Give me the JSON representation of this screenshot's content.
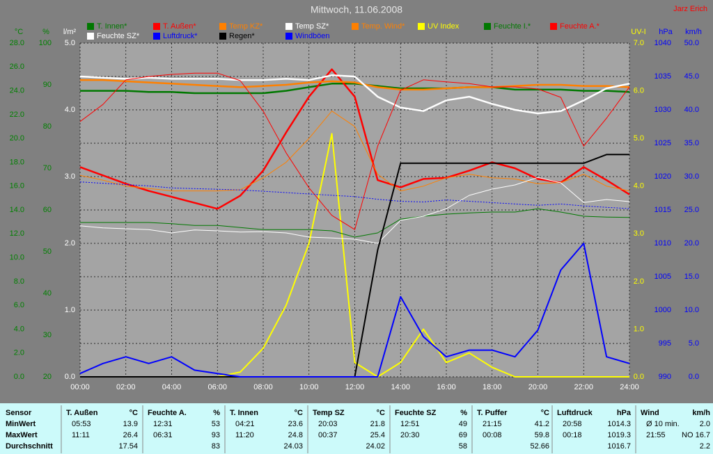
{
  "chart_data": {
    "type": "line",
    "title": "Mittwoch, 11.06.2008",
    "credit": "Jarz Erich",
    "xlim": [
      0,
      24
    ],
    "xticks": [
      {
        "value": 0,
        "label": "00:00"
      },
      {
        "value": 2,
        "label": "02:00"
      },
      {
        "value": 4,
        "label": "04:00"
      },
      {
        "value": 6,
        "label": "06:00"
      },
      {
        "value": 8,
        "label": "08:00"
      },
      {
        "value": 10,
        "label": "10:00"
      },
      {
        "value": 12,
        "label": "12:00"
      },
      {
        "value": 14,
        "label": "14:00"
      },
      {
        "value": 16,
        "label": "16:00"
      },
      {
        "value": 18,
        "label": "18:00"
      },
      {
        "value": 20,
        "label": "20:00"
      },
      {
        "value": 22,
        "label": "22:00"
      },
      {
        "value": 24,
        "label": "24:00"
      }
    ],
    "x": [
      0,
      1,
      2,
      3,
      4,
      5,
      6,
      7,
      8,
      9,
      10,
      11,
      12,
      13,
      14,
      15,
      16,
      17,
      18,
      19,
      20,
      21,
      22,
      23,
      24
    ],
    "axes": [
      {
        "label": "°C",
        "color": "#008000",
        "lim": [
          0,
          28
        ],
        "ticks": [
          {
            "value": 0,
            "label": "0.0"
          },
          {
            "value": 2,
            "label": "2.0"
          },
          {
            "value": 4,
            "label": "4.0"
          },
          {
            "value": 6,
            "label": "6.0"
          },
          {
            "value": 8,
            "label": "8.0"
          },
          {
            "value": 10,
            "label": "10.0"
          },
          {
            "value": 12,
            "label": "12.0"
          },
          {
            "value": 14,
            "label": "14.0"
          },
          {
            "value": 16,
            "label": "16.0"
          },
          {
            "value": 18,
            "label": "18.0"
          },
          {
            "value": 20,
            "label": "20.0"
          },
          {
            "value": 22,
            "label": "22.0"
          },
          {
            "value": 24,
            "label": "24.0"
          },
          {
            "value": 26,
            "label": "26.0"
          },
          {
            "value": 28,
            "label": "28.0"
          }
        ]
      },
      {
        "label": "%",
        "color": "#008000",
        "lim": [
          20,
          100
        ],
        "ticks": [
          20,
          30,
          40,
          50,
          60,
          70,
          80,
          90,
          100
        ]
      },
      {
        "label": "l/m²",
        "color": "#ffffff",
        "lim": [
          0,
          5
        ],
        "ticks": [
          {
            "value": 0,
            "label": "0.0"
          },
          {
            "value": 1,
            "label": "1.0"
          },
          {
            "value": 2,
            "label": "2.0"
          },
          {
            "value": 3,
            "label": "3.0"
          },
          {
            "value": 4,
            "label": "4.0"
          },
          {
            "value": 5,
            "label": "5.0"
          }
        ]
      },
      {
        "label": "UV-I",
        "color": "#ffff00",
        "lim": [
          0,
          7
        ],
        "ticks": [
          {
            "value": 0,
            "label": "0.0"
          },
          {
            "value": 1,
            "label": "1.0"
          },
          {
            "value": 2,
            "label": "2.0"
          },
          {
            "value": 3,
            "label": "3.0"
          },
          {
            "value": 4,
            "label": "4.0"
          },
          {
            "value": 5,
            "label": "5.0"
          },
          {
            "value": 6,
            "label": "6.0"
          },
          {
            "value": 7,
            "label": "7.0"
          }
        ]
      },
      {
        "label": "hPa",
        "color": "#0000ff",
        "lim": [
          990,
          1040
        ],
        "grid": true,
        "ticks": [
          990,
          995,
          1000,
          1005,
          1010,
          1015,
          1020,
          1025,
          1030,
          1035,
          1040
        ]
      },
      {
        "label": "km/h",
        "color": "#0000ff",
        "lim": [
          0,
          50
        ],
        "ticks": [
          {
            "value": 0,
            "label": "0.0"
          },
          {
            "value": 5,
            "label": "5.0"
          },
          {
            "value": 10,
            "label": "10.0"
          },
          {
            "value": 15,
            "label": "15.0"
          },
          {
            "value": 20,
            "label": "20.0"
          },
          {
            "value": 25,
            "label": "25.0"
          },
          {
            "value": 30,
            "label": "30.0"
          },
          {
            "value": 35,
            "label": "35.0"
          },
          {
            "value": 40,
            "label": "40.0"
          },
          {
            "value": 45,
            "label": "45.0"
          },
          {
            "value": 50,
            "label": "50.0"
          }
        ]
      }
    ],
    "series": [
      {
        "name": "T. Innen*",
        "color": "#007800",
        "axis": 0,
        "line_width": 2.5,
        "values": [
          24.0,
          24.0,
          24.0,
          23.9,
          23.9,
          23.8,
          23.8,
          23.8,
          23.8,
          24.0,
          24.3,
          24.6,
          24.6,
          24.4,
          24.2,
          24.2,
          24.2,
          24.3,
          24.3,
          24.1,
          24.1,
          24.1,
          24.0,
          24.0,
          23.9
        ]
      },
      {
        "name": "T. Außen*",
        "color": "#ff0000",
        "axis": 0,
        "line_width": 2.5,
        "values": [
          17.6,
          16.9,
          16.2,
          15.6,
          15.1,
          14.6,
          14.1,
          15.2,
          17.3,
          20.5,
          23.5,
          25.8,
          23.5,
          16.5,
          15.9,
          16.6,
          16.7,
          17.3,
          18.0,
          17.5,
          16.6,
          16.3,
          17.6,
          16.5,
          15.3
        ]
      },
      {
        "name": "Temp KZ*",
        "color": "#ff8000",
        "axis": 0,
        "line_width": 2.5,
        "values": [
          24.9,
          24.9,
          24.8,
          24.7,
          24.6,
          24.5,
          24.4,
          24.3,
          24.4,
          24.5,
          24.7,
          24.8,
          24.7,
          24.3,
          24.1,
          24.1,
          24.2,
          24.3,
          24.3,
          24.4,
          24.5,
          24.5,
          24.4,
          24.4,
          24.3
        ]
      },
      {
        "name": "Temp SZ*",
        "color": "#ffffff",
        "axis": 0,
        "line_width": 2.5,
        "values": [
          25.2,
          25.1,
          25.0,
          25.1,
          25.0,
          25.0,
          25.0,
          24.9,
          24.9,
          25.0,
          24.9,
          25.3,
          25.2,
          23.5,
          22.6,
          22.3,
          23.2,
          23.5,
          22.9,
          22.4,
          22.1,
          22.3,
          23.2,
          24.2,
          24.6
        ]
      },
      {
        "name": "Temp. Wind*",
        "color": "#ff8000",
        "axis": 0,
        "line_width": 1,
        "values": [
          16.9,
          16.5,
          16.0,
          15.8,
          15.6,
          15.6,
          15.6,
          15.7,
          16.7,
          18.0,
          20.0,
          22.3,
          21.0,
          17.0,
          15.6,
          16.0,
          16.7,
          17.0,
          16.7,
          16.6,
          16.2,
          16.3,
          17.0,
          16.0,
          15.6
        ]
      },
      {
        "name": "UV Index",
        "color": "#ffff00",
        "axis": 3,
        "line_width": 2,
        "values": [
          0,
          0,
          0,
          0,
          0,
          0,
          0,
          0.1,
          0.6,
          1.5,
          2.8,
          5.1,
          0.3,
          0,
          0.3,
          1.0,
          0.3,
          0.5,
          0.2,
          0,
          0,
          0,
          0,
          0,
          0
        ]
      },
      {
        "name": "Feuchte I.*",
        "color": "#007800",
        "axis": 1,
        "line_width": 1,
        "values": [
          57.0,
          57.0,
          57.0,
          57.0,
          56.7,
          56.3,
          56.3,
          55.8,
          55.3,
          55.3,
          55.3,
          55.0,
          53.5,
          54.5,
          57.8,
          58.5,
          59.0,
          59.3,
          59.5,
          59.5,
          60.3,
          59.5,
          58.5,
          58.3,
          58.2
        ]
      },
      {
        "name": "Feuchte A.*",
        "color": "#ff0000",
        "axis": 1,
        "line_width": 1,
        "values": [
          81.2,
          85.3,
          91.2,
          92.0,
          92.5,
          92.8,
          92.8,
          91.0,
          83.7,
          73.7,
          65.3,
          58.7,
          55.3,
          75.3,
          88.7,
          91.2,
          90.7,
          90.3,
          89.5,
          89.5,
          89.0,
          87.0,
          75.3,
          82.0,
          89.5
        ]
      },
      {
        "name": "Feuchte SZ*",
        "color": "#ffffff",
        "axis": 1,
        "line_width": 1,
        "values": [
          56.2,
          55.7,
          55.5,
          55.3,
          54.5,
          55.2,
          55.0,
          54.7,
          54.8,
          54.5,
          53.5,
          53.3,
          53.0,
          52.0,
          57.5,
          58.5,
          60.3,
          63.5,
          65.0,
          66.0,
          67.8,
          66.5,
          61.8,
          62.5,
          62.0
        ]
      },
      {
        "name": "Luftdruck*",
        "color": "#0000ff",
        "axis": 4,
        "line_width": 1,
        "style": "dotted",
        "values": [
          1019.2,
          1019.0,
          1018.8,
          1018.6,
          1018.3,
          1018.2,
          1018.1,
          1018.0,
          1017.8,
          1017.6,
          1017.4,
          1017.2,
          1017.0,
          1016.6,
          1016.3,
          1016.2,
          1016.5,
          1016.3,
          1016.1,
          1015.9,
          1015.7,
          1015.9,
          1015.6,
          1015.4,
          1015.2
        ]
      },
      {
        "name": "Regen*",
        "color": "#000000",
        "axis": 2,
        "line_width": 2,
        "values": [
          0,
          0,
          0,
          0,
          0,
          0,
          0,
          0,
          0,
          0,
          0,
          0,
          0,
          1.9,
          3.2,
          3.2,
          3.2,
          3.2,
          3.2,
          3.2,
          3.2,
          3.2,
          3.2,
          3.33,
          3.33
        ]
      },
      {
        "name": "Windböen",
        "color": "#0000ff",
        "axis": 5,
        "line_width": 2,
        "values": [
          0.5,
          2,
          3,
          2,
          3,
          1,
          0.5,
          0,
          0,
          0,
          0,
          0,
          0,
          0,
          12,
          6,
          3,
          4,
          4,
          3,
          7,
          16,
          20,
          3,
          2
        ]
      }
    ]
  },
  "table": {
    "row_labels": [
      "Sensor",
      "MinWert",
      "MaxWert",
      "Durchschnitt"
    ],
    "columns": [
      {
        "name": "T. Außen",
        "unit": "°C",
        "min": [
          "05:53",
          "13.9"
        ],
        "max": [
          "11:11",
          "26.4"
        ],
        "avg": "17.54"
      },
      {
        "name": "Feuchte A.",
        "unit": "%",
        "min": [
          "12:31",
          "53"
        ],
        "max": [
          "06:31",
          "93"
        ],
        "avg": "83"
      },
      {
        "name": "T. Innen",
        "unit": "°C",
        "min": [
          "04:21",
          "23.6"
        ],
        "max": [
          "11:20",
          "24.8"
        ],
        "avg": "24.03"
      },
      {
        "name": "Temp SZ",
        "unit": "°C",
        "min": [
          "20:03",
          "21.8"
        ],
        "max": [
          "00:37",
          "25.4"
        ],
        "avg": "24.02"
      },
      {
        "name": "Feuchte SZ",
        "unit": "%",
        "min": [
          "12:51",
          "49"
        ],
        "max": [
          "20:30",
          "69"
        ],
        "avg": "58"
      },
      {
        "name": "T. Puffer",
        "unit": "°C",
        "min": [
          "21:15",
          "41.2"
        ],
        "max": [
          "00:08",
          "59.8"
        ],
        "avg": "52.66"
      },
      {
        "name": "Luftdruck",
        "unit": "hPa",
        "min": [
          "20:58",
          "1014.3"
        ],
        "max": [
          "00:18",
          "1019.3"
        ],
        "avg": "1016.7"
      },
      {
        "name": "Wind",
        "unit": "km/h",
        "min": [
          "Ø 10 min.",
          "2.0"
        ],
        "max": [
          "21:55",
          "NO 16.7"
        ],
        "avg": "2.2"
      }
    ]
  }
}
